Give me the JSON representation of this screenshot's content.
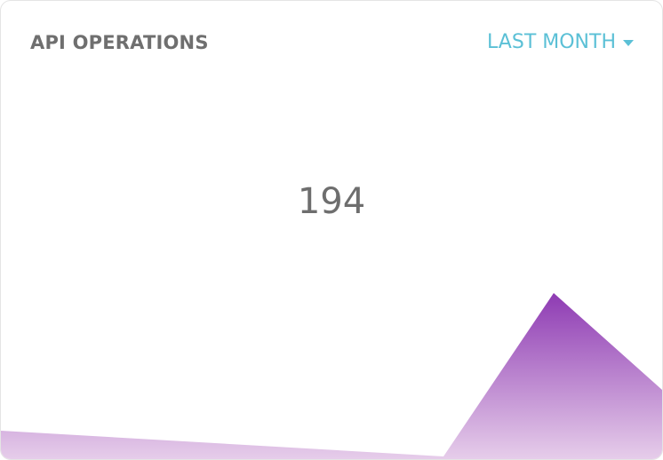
{
  "widget": {
    "title": "API OPERATIONS",
    "period_label": "LAST MONTH",
    "value": "194",
    "colors": {
      "title": "#6f6f6f",
      "accent": "#5bc0d6",
      "area_top": "#8e3bb3",
      "area_bottom": "#e6cdea"
    }
  },
  "icons": {
    "dropdown": "caret-down-icon"
  }
}
